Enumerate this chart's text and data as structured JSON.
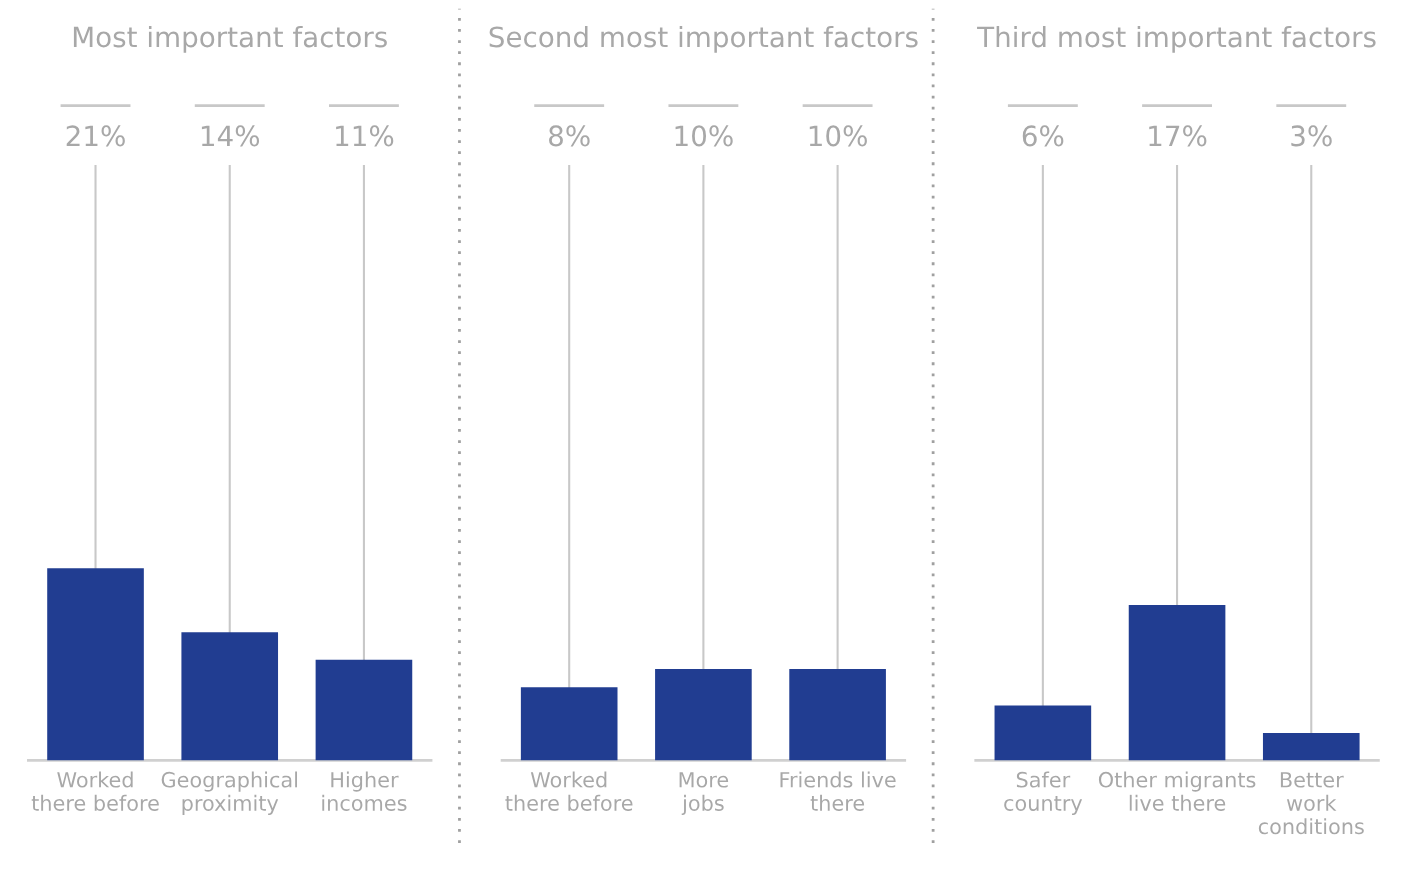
{
  "chart_data": [
    {
      "type": "bar",
      "title": "Most important factors",
      "categories": [
        "Worked\nthere before",
        "Geographical\nproximity",
        "Higher\nincomes"
      ],
      "values": [
        21,
        14,
        11
      ],
      "value_labels": [
        "21%",
        "14%",
        "11%"
      ],
      "color": "#213d91"
    },
    {
      "type": "bar",
      "title": "Second most important factors",
      "categories": [
        "Worked\nthere before",
        "More\njobs",
        "Friends live\nthere"
      ],
      "values": [
        8,
        10,
        10
      ],
      "value_labels": [
        "8%",
        "10%",
        "10%"
      ],
      "color": "#213d91"
    },
    {
      "type": "bar",
      "title": "Third most important factors",
      "categories": [
        "Safer\ncountry",
        "Other migrants\nlive there",
        "Better\nwork\nconditions"
      ],
      "values": [
        6,
        17,
        3
      ],
      "value_labels": [
        "6%",
        "17%",
        "3%"
      ],
      "color": "#213d91"
    }
  ]
}
